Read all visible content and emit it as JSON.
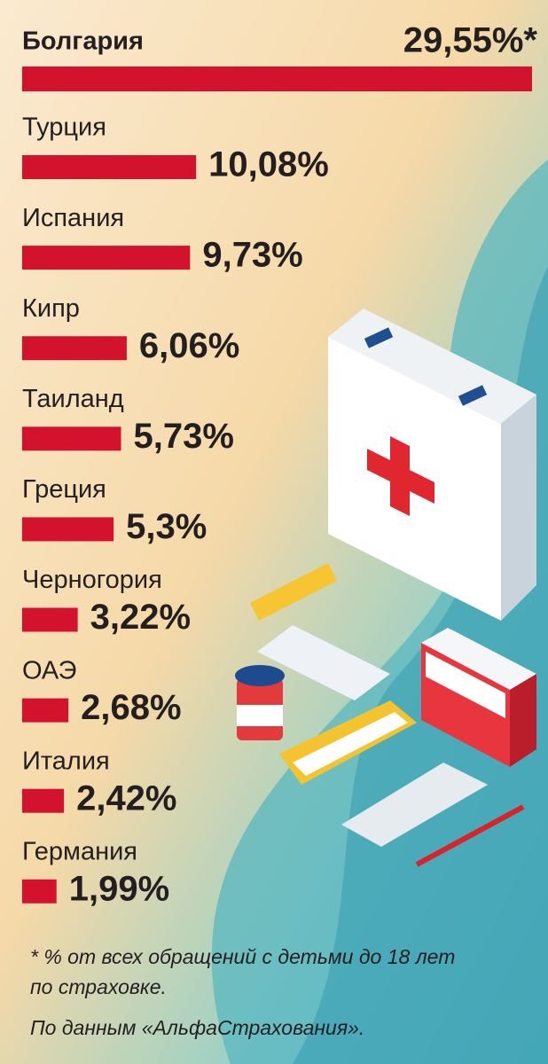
{
  "chart_data": {
    "type": "bar",
    "orientation": "horizontal",
    "categories": [
      "Болгария",
      "Турция",
      "Испания",
      "Кипр",
      "Таиланд",
      "Греция",
      "Черногория",
      "ОАЭ",
      "Италия",
      "Германия"
    ],
    "values": [
      29.55,
      10.08,
      9.73,
      6.06,
      5.73,
      5.3,
      3.22,
      2.68,
      2.42,
      1.99
    ],
    "value_labels": [
      "29,55%*",
      "10,08%",
      "9,73%",
      "6,06%",
      "5,73%",
      "5,3%",
      "3,22%",
      "2,68%",
      "2,42%",
      "1,99%"
    ],
    "color": "#d3132e",
    "notes": [
      "* % от всех обращений с детьми до 18 лет по страховке.",
      "По данным «АльфаСтрахования»."
    ]
  }
}
